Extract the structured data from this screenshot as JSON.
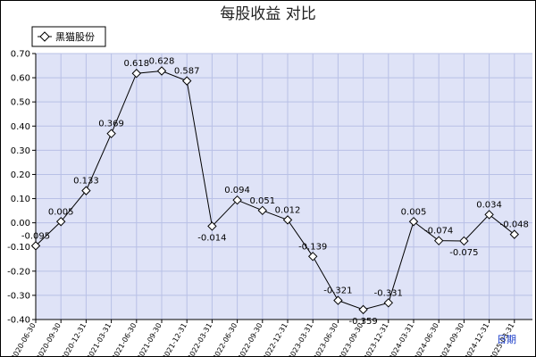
{
  "chart_data": {
    "type": "line",
    "title": "每股收益  对比",
    "xlabel": "日期",
    "ylabel": "",
    "ylim": [
      -0.4,
      0.7
    ],
    "y_ticks": [
      "0.70",
      "0.60",
      "0.50",
      "0.40",
      "0.30",
      "0.20",
      "0.10",
      "0.00",
      "-0.10",
      "-0.20",
      "-0.30",
      "-0.40"
    ],
    "grid": true,
    "legend_position": "top-left",
    "categories": [
      "2020-06-30",
      "2020-09-30",
      "2020-12-31",
      "2021-03-31",
      "2021-06-30",
      "2021-09-30",
      "2021-12-31",
      "2022-03-31",
      "2022-06-30",
      "2022-09-30",
      "2022-12-31",
      "2023-03-31",
      "2023-06-30",
      "2023-09-30",
      "2023-12-31",
      "2024-03-31",
      "2024-06-30",
      "2024-09-30",
      "2024-12-31",
      "2025-03-31"
    ],
    "series": [
      {
        "name": "黑猫股份",
        "color": "#000000",
        "values": [
          -0.095,
          0.005,
          0.133,
          0.369,
          0.618,
          0.628,
          0.587,
          -0.014,
          0.094,
          0.051,
          0.012,
          -0.139,
          -0.321,
          -0.359,
          -0.331,
          0.005,
          -0.074,
          -0.075,
          0.034,
          -0.048
        ],
        "labels": [
          "-0.095",
          "0.005",
          "0.133",
          "0.369",
          "0.618",
          "0.628",
          "0.587",
          "-0.014",
          "0.094",
          "0.051",
          "0.012",
          "-0.139",
          "-0.321",
          "-0.359",
          "-0.331",
          "0.005",
          "-0.074",
          "-0.075",
          "0.034",
          "-0.048"
        ]
      }
    ],
    "colors": {
      "plot_background": "#dfe3f7",
      "grid": "#b8c0e6",
      "axis": "#000000",
      "line": "#000000",
      "xlabel": "#1a3cc8"
    }
  }
}
